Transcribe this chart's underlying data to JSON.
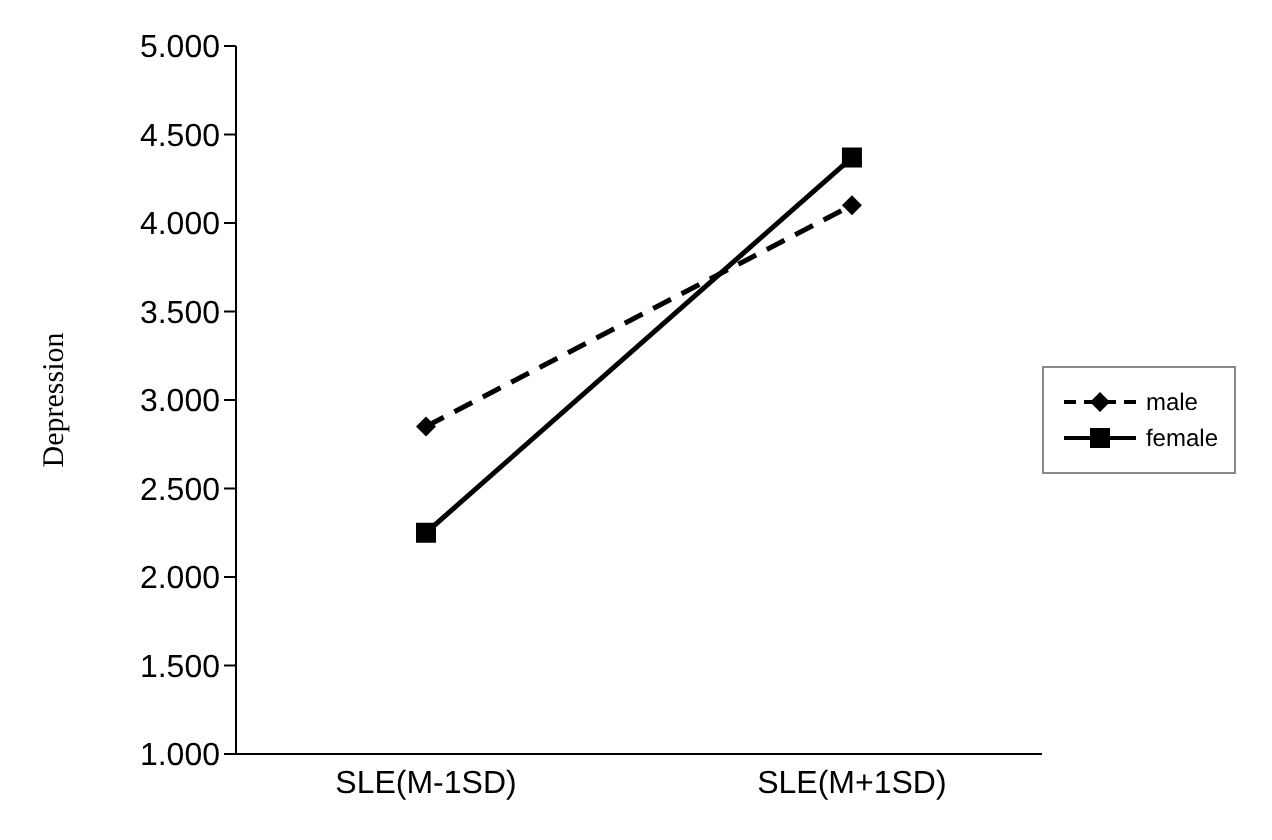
{
  "chart_data": {
    "type": "line",
    "ylabel": "Depression",
    "categories": [
      "SLE(M-1SD)",
      "SLE(M+1SD)"
    ],
    "series": [
      {
        "name": "male",
        "color": "#000000",
        "values": [
          2.85,
          4.1
        ],
        "marker": "diamond",
        "line_style": "dashed"
      },
      {
        "name": "female",
        "color": "#000000",
        "values": [
          2.25,
          4.37
        ],
        "marker": "square",
        "line_style": "solid"
      }
    ],
    "ylim": [
      1,
      5
    ],
    "yticks": [
      {
        "value": 1,
        "label": "1.000"
      },
      {
        "value": 1.5,
        "label": "1.500"
      },
      {
        "value": 2,
        "label": "2.000"
      },
      {
        "value": 2.5,
        "label": "2.500"
      },
      {
        "value": 3,
        "label": "3.000"
      },
      {
        "value": 3.5,
        "label": "3.500"
      },
      {
        "value": 4,
        "label": "4.000"
      },
      {
        "value": 4.5,
        "label": "4.500"
      },
      {
        "value": 5,
        "label": "5.000"
      }
    ],
    "grid": false,
    "legend": "right"
  }
}
